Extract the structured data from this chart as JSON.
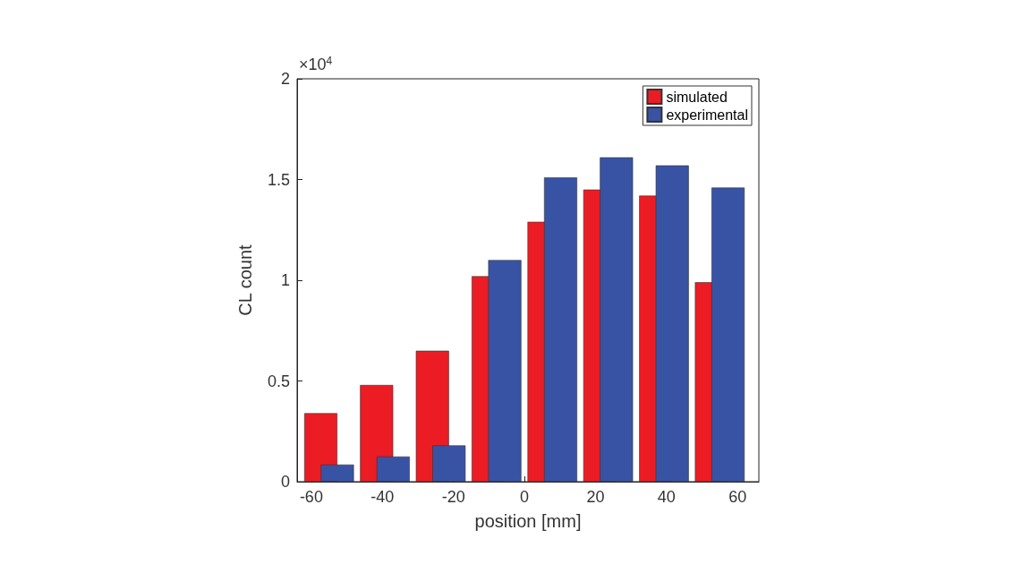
{
  "chart_data": {
    "type": "bar",
    "xlabel": "position [mm]",
    "ylabel": "CL count",
    "annotations": [
      "×10$^{4}$"
    ],
    "x": [
      -55,
      -39.29,
      -23.57,
      -7.86,
      7.86,
      23.57,
      39.29,
      55
    ],
    "series": [
      {
        "name": "simulated",
        "color": "#ec1c24",
        "values": [
          0.34,
          0.48,
          0.65,
          1.02,
          1.29,
          1.45,
          1.42,
          0.99
        ]
      },
      {
        "name": "experimental",
        "color": "#3953a4",
        "values": [
          0.085,
          0.125,
          0.18,
          1.1,
          1.51,
          1.61,
          1.57,
          1.46
        ]
      }
    ],
    "xlim": [
      -64,
      66
    ],
    "xticks": [
      -60,
      -40,
      -20,
      0,
      20,
      40,
      60
    ],
    "ylim": [
      0,
      2
    ],
    "yticks": [
      0,
      0.5,
      1,
      1.5,
      2
    ],
    "legend": "top right",
    "grid": false
  }
}
